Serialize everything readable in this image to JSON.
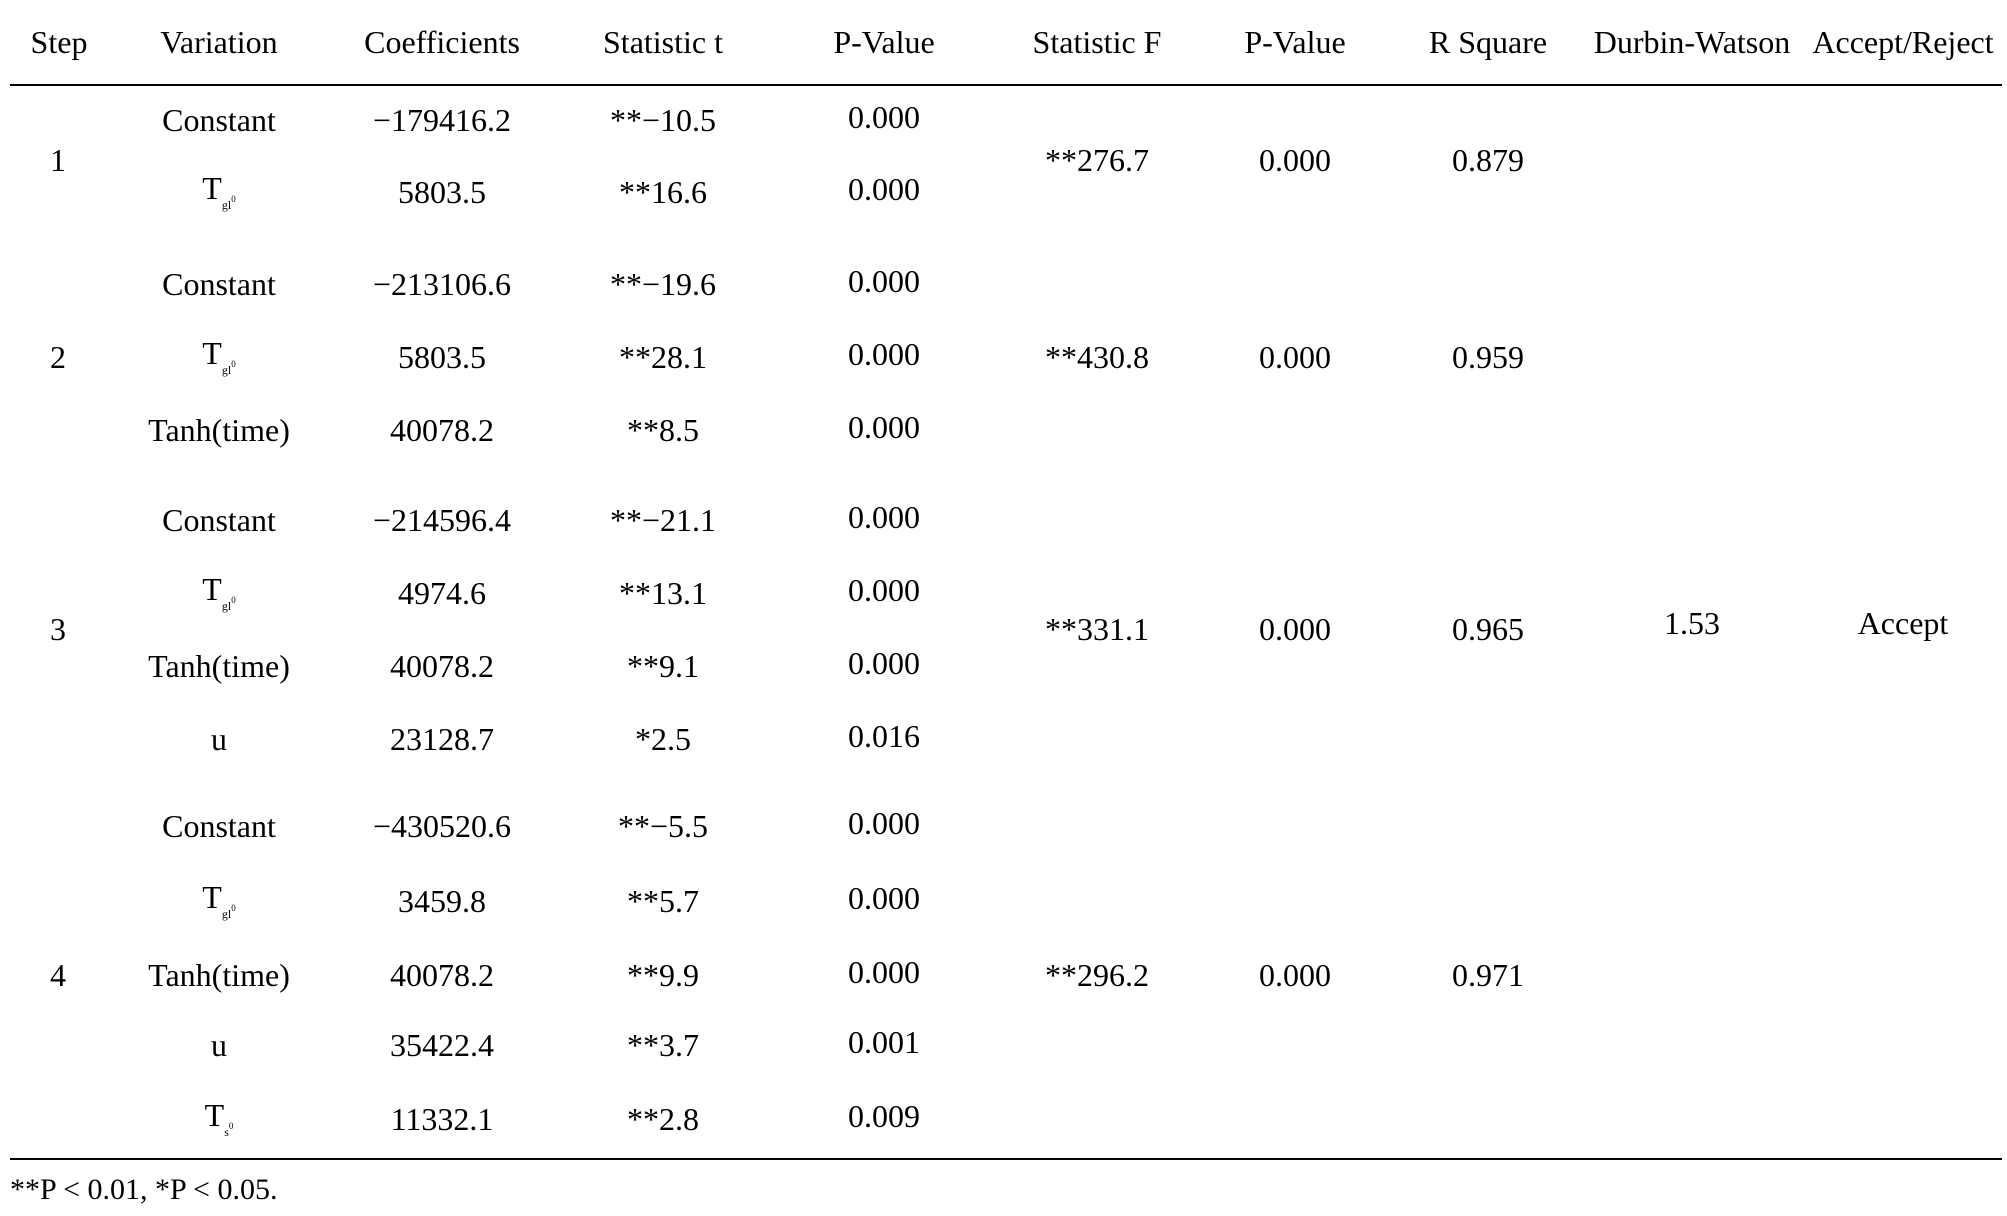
{
  "header": {
    "step": "Step",
    "variation": "Variation",
    "coefficients": "Coefficients",
    "statistic_t": "Statistic t",
    "p_value_t": "P-Value",
    "statistic_f": "Statistic F",
    "p_value_f": "P-Value",
    "r_square": "R Square",
    "durbin_watson": "Durbin-Watson",
    "accept_reject": "Accept/Reject"
  },
  "steps": [
    {
      "step": "1",
      "statistic_f": "**276.7",
      "p_value_f": "0.000",
      "r_square": "0.879",
      "rows": [
        {
          "variation": "Constant",
          "coef": "−179416.2",
          "t": "**−10.5",
          "p": "0.000"
        },
        {
          "variation_main": "T",
          "variation_sub": "gl",
          "variation_subsub": "0",
          "coef": "5803.5",
          "t": "**16.6",
          "p": "0.000"
        }
      ]
    },
    {
      "step": "2",
      "statistic_f": "**430.8",
      "p_value_f": "0.000",
      "r_square": "0.959",
      "rows": [
        {
          "variation": "Constant",
          "coef": "−213106.6",
          "t": "**−19.6",
          "p": "0.000"
        },
        {
          "variation_main": "T",
          "variation_sub": "gl",
          "variation_subsub": "0",
          "coef": "5803.5",
          "t": "**28.1",
          "p": "0.000"
        },
        {
          "variation": "Tanh(time)",
          "coef": "40078.2",
          "t": "**8.5",
          "p": "0.000"
        }
      ]
    },
    {
      "step": "3",
      "statistic_f": "**331.1",
      "p_value_f": "0.000",
      "r_square": "0.965",
      "durbin_watson": "1.53",
      "accept_reject": "Accept",
      "rows": [
        {
          "variation": "Constant",
          "coef": "−214596.4",
          "t": "**−21.1",
          "p": "0.000"
        },
        {
          "variation_main": "T",
          "variation_sub": "gl",
          "variation_subsub": "0",
          "coef": "4974.6",
          "t": "**13.1",
          "p": "0.000"
        },
        {
          "variation": "Tanh(time)",
          "coef": "40078.2",
          "t": "**9.1",
          "p": "0.000"
        },
        {
          "variation": "u",
          "coef": "23128.7",
          "t": "*2.5",
          "p": "0.016"
        }
      ]
    },
    {
      "step": "4",
      "statistic_f": "**296.2",
      "p_value_f": "0.000",
      "r_square": "0.971",
      "rows": [
        {
          "variation": "Constant",
          "coef": "−430520.6",
          "t": "**−5.5",
          "p": "0.000"
        },
        {
          "variation_main": "T",
          "variation_sub": "gl",
          "variation_subsub": "0",
          "coef": "3459.8",
          "t": "**5.7",
          "p": "0.000"
        },
        {
          "variation": "Tanh(time)",
          "coef": "40078.2",
          "t": "**9.9",
          "p": "0.000"
        },
        {
          "variation": "u",
          "coef": "35422.4",
          "t": "**3.7",
          "p": "0.001"
        },
        {
          "variation_main": "T",
          "variation_sub": "s",
          "variation_subsub": "0",
          "coef": "11332.1",
          "t": "**2.8",
          "p": "0.009"
        }
      ]
    }
  ],
  "footnote": "**P < 0.01, *P < 0.05."
}
